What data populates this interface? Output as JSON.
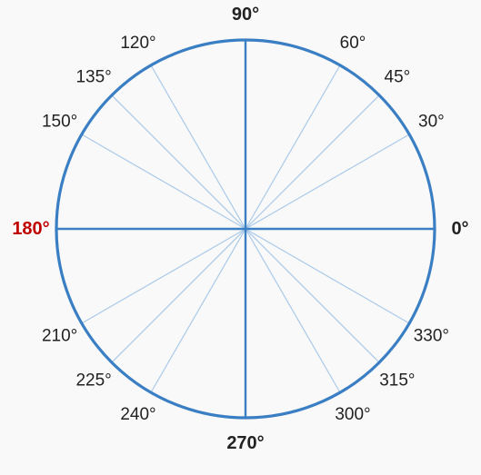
{
  "diagram": {
    "angles": [
      {
        "deg": 0,
        "label": "0°",
        "major": true,
        "axis": true
      },
      {
        "deg": 30,
        "label": "30°",
        "major": false,
        "axis": false
      },
      {
        "deg": 45,
        "label": "45°",
        "major": false,
        "axis": false
      },
      {
        "deg": 60,
        "label": "60°",
        "major": false,
        "axis": false
      },
      {
        "deg": 90,
        "label": "90°",
        "major": true,
        "axis": true
      },
      {
        "deg": 120,
        "label": "120°",
        "major": false,
        "axis": false
      },
      {
        "deg": 135,
        "label": "135°",
        "major": false,
        "axis": false
      },
      {
        "deg": 150,
        "label": "150°",
        "major": false,
        "axis": false
      },
      {
        "deg": 180,
        "label": "180°",
        "major": true,
        "axis": true,
        "highlight": true
      },
      {
        "deg": 210,
        "label": "210°",
        "major": false,
        "axis": false
      },
      {
        "deg": 225,
        "label": "225°",
        "major": false,
        "axis": false
      },
      {
        "deg": 240,
        "label": "240°",
        "major": false,
        "axis": false
      },
      {
        "deg": 270,
        "label": "270°",
        "major": true,
        "axis": true
      },
      {
        "deg": 300,
        "label": "300°",
        "major": false,
        "axis": false
      },
      {
        "deg": 315,
        "label": "315°",
        "major": false,
        "axis": false
      },
      {
        "deg": 330,
        "label": "330°",
        "major": false,
        "axis": false
      }
    ],
    "colors": {
      "circle": "#3a7ec4",
      "axis": "#3a7ec4",
      "spoke": "#a9c9e8",
      "label": "#222222",
      "highlight": "#c00000",
      "background": "#f9f9f9"
    }
  }
}
